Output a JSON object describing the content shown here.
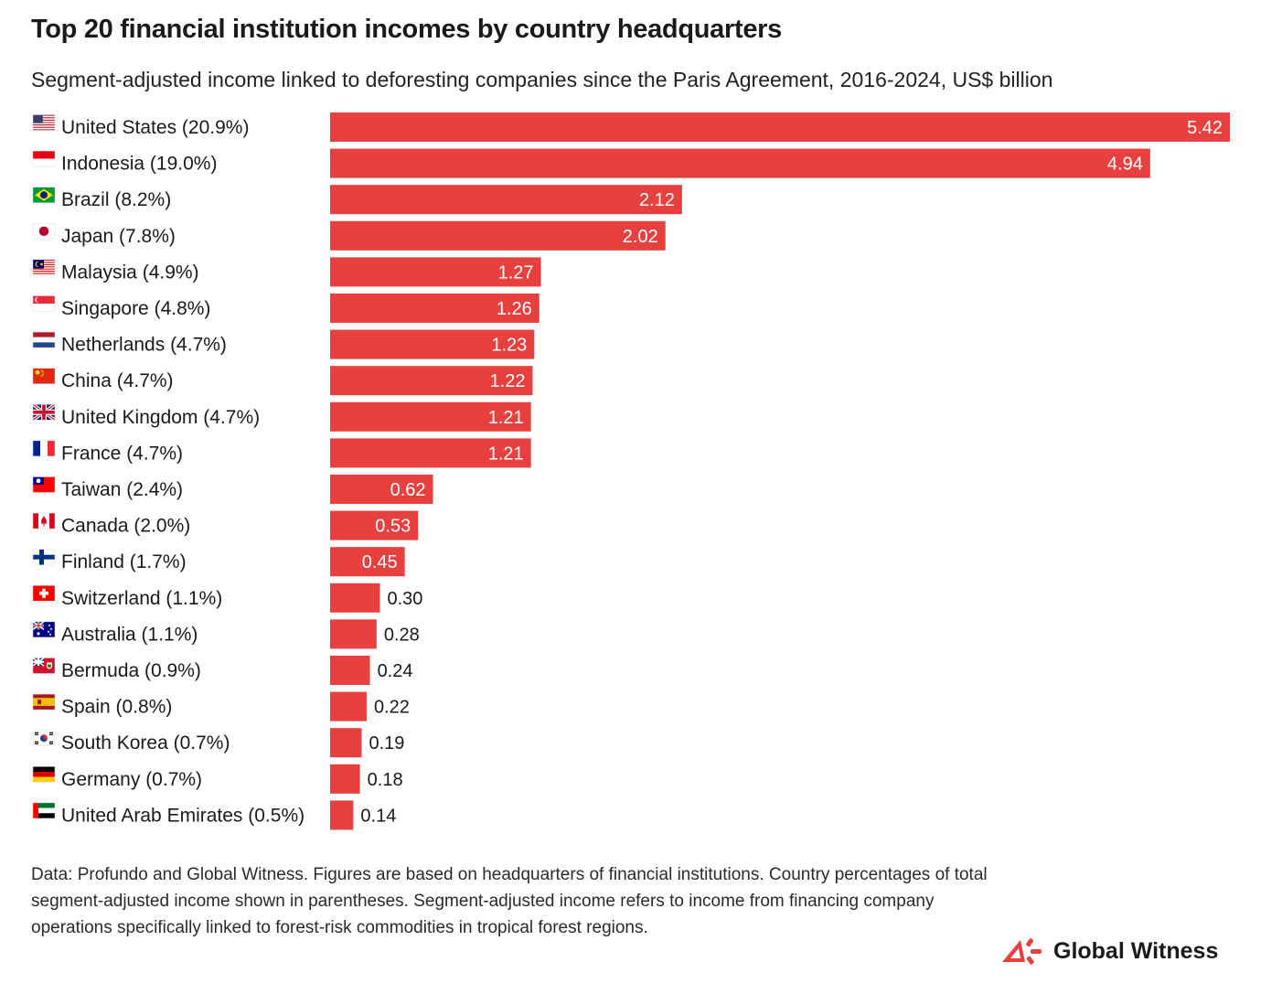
{
  "title": "Top 20 financial institution incomes by country headquarters",
  "subtitle": "Segment-adjusted income linked to deforesting companies since the Paris Agreement, 2016-2024, US$ billion",
  "footnote": "Data: Profundo and Global Witness. Figures are based on headquarters of financial institutions. Country percentages of total segment-adjusted income shown in parentheses. Segment-adjusted income refers to income from financing company operations specifically linked to forest-risk commodities in tropical forest regions.",
  "brand": {
    "name": "Global Witness",
    "color": "#e8403f"
  },
  "colors": {
    "bar": "#e8403f",
    "bar_label_inside": "#ffffff",
    "bar_label_outside": "#1a1a1a"
  },
  "chart_data": {
    "type": "bar",
    "orientation": "horizontal",
    "categories": [
      "United States (20.9%)",
      "Indonesia (19.0%)",
      "Brazil (8.2%)",
      "Japan (7.8%)",
      "Malaysia (4.9%)",
      "Singapore (4.8%)",
      "Netherlands (4.7%)",
      "China (4.7%)",
      "United Kingdom (4.7%)",
      "France (4.7%)",
      "Taiwan (2.4%)",
      "Canada (2.0%)",
      "Finland (1.7%)",
      "Switzerland (1.1%)",
      "Australia (1.1%)",
      "Bermuda (0.9%)",
      "Spain (0.8%)",
      "South Korea (0.7%)",
      "Germany (0.7%)",
      "United Arab Emirates (0.5%)"
    ],
    "values": [
      5.42,
      4.94,
      2.12,
      2.02,
      1.27,
      1.26,
      1.23,
      1.22,
      1.21,
      1.21,
      0.62,
      0.53,
      0.45,
      0.3,
      0.28,
      0.24,
      0.22,
      0.19,
      0.18,
      0.14
    ],
    "value_labels": [
      "5.42",
      "4.94",
      "2.12",
      "2.02",
      "1.27",
      "1.26",
      "1.23",
      "1.22",
      "1.21",
      "1.21",
      "0.62",
      "0.53",
      "0.45",
      "0.30",
      "0.28",
      "0.24",
      "0.22",
      "0.19",
      "0.18",
      "0.14"
    ],
    "flag_icons": [
      "us-flag-icon",
      "id-flag-icon",
      "br-flag-icon",
      "jp-flag-icon",
      "my-flag-icon",
      "sg-flag-icon",
      "nl-flag-icon",
      "cn-flag-icon",
      "gb-flag-icon",
      "fr-flag-icon",
      "tw-flag-icon",
      "ca-flag-icon",
      "fi-flag-icon",
      "ch-flag-icon",
      "au-flag-icon",
      "bm-flag-icon",
      "es-flag-icon",
      "kr-flag-icon",
      "de-flag-icon",
      "ae-flag-icon"
    ],
    "xlim": [
      0,
      5.42
    ],
    "grid": false,
    "legend": "none"
  }
}
